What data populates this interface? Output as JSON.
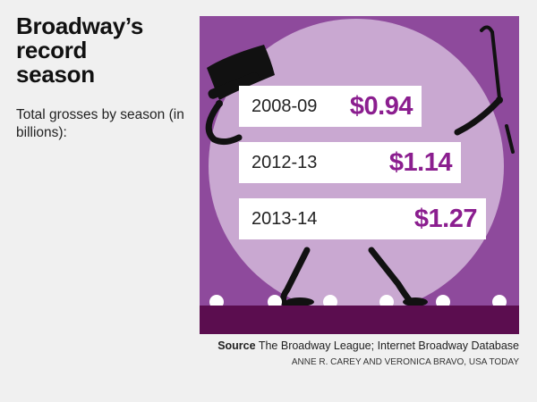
{
  "headline": [
    "Broadway’s",
    "record",
    "season"
  ],
  "subhead": "Total grosses by season (in billions):",
  "chart_data": {
    "type": "bar",
    "categories": [
      "2008-09",
      "2012-13",
      "2013-14"
    ],
    "values": [
      0.94,
      1.14,
      1.27
    ],
    "value_labels": [
      "$0.94",
      "$1.14",
      "$1.27"
    ],
    "unit": "billions of dollars",
    "orientation": "horizontal"
  },
  "colors": {
    "purple_bg": "#8e4a9c",
    "spotlight": "#c9a8d1",
    "stage": "#5b0d4f",
    "value_text": "#8b1e8f",
    "bar_fill": "#ffffff",
    "figure": "#111111"
  },
  "icons": [
    "top-hat-icon",
    "cane-icon",
    "stick-figure-icon",
    "stage-lights-icon"
  ],
  "source": {
    "label": "Source",
    "text": "The Broadway League; Internet Broadway Database"
  },
  "credit": "ANNE R. CAREY AND VERONICA BRAVO, USA TODAY"
}
